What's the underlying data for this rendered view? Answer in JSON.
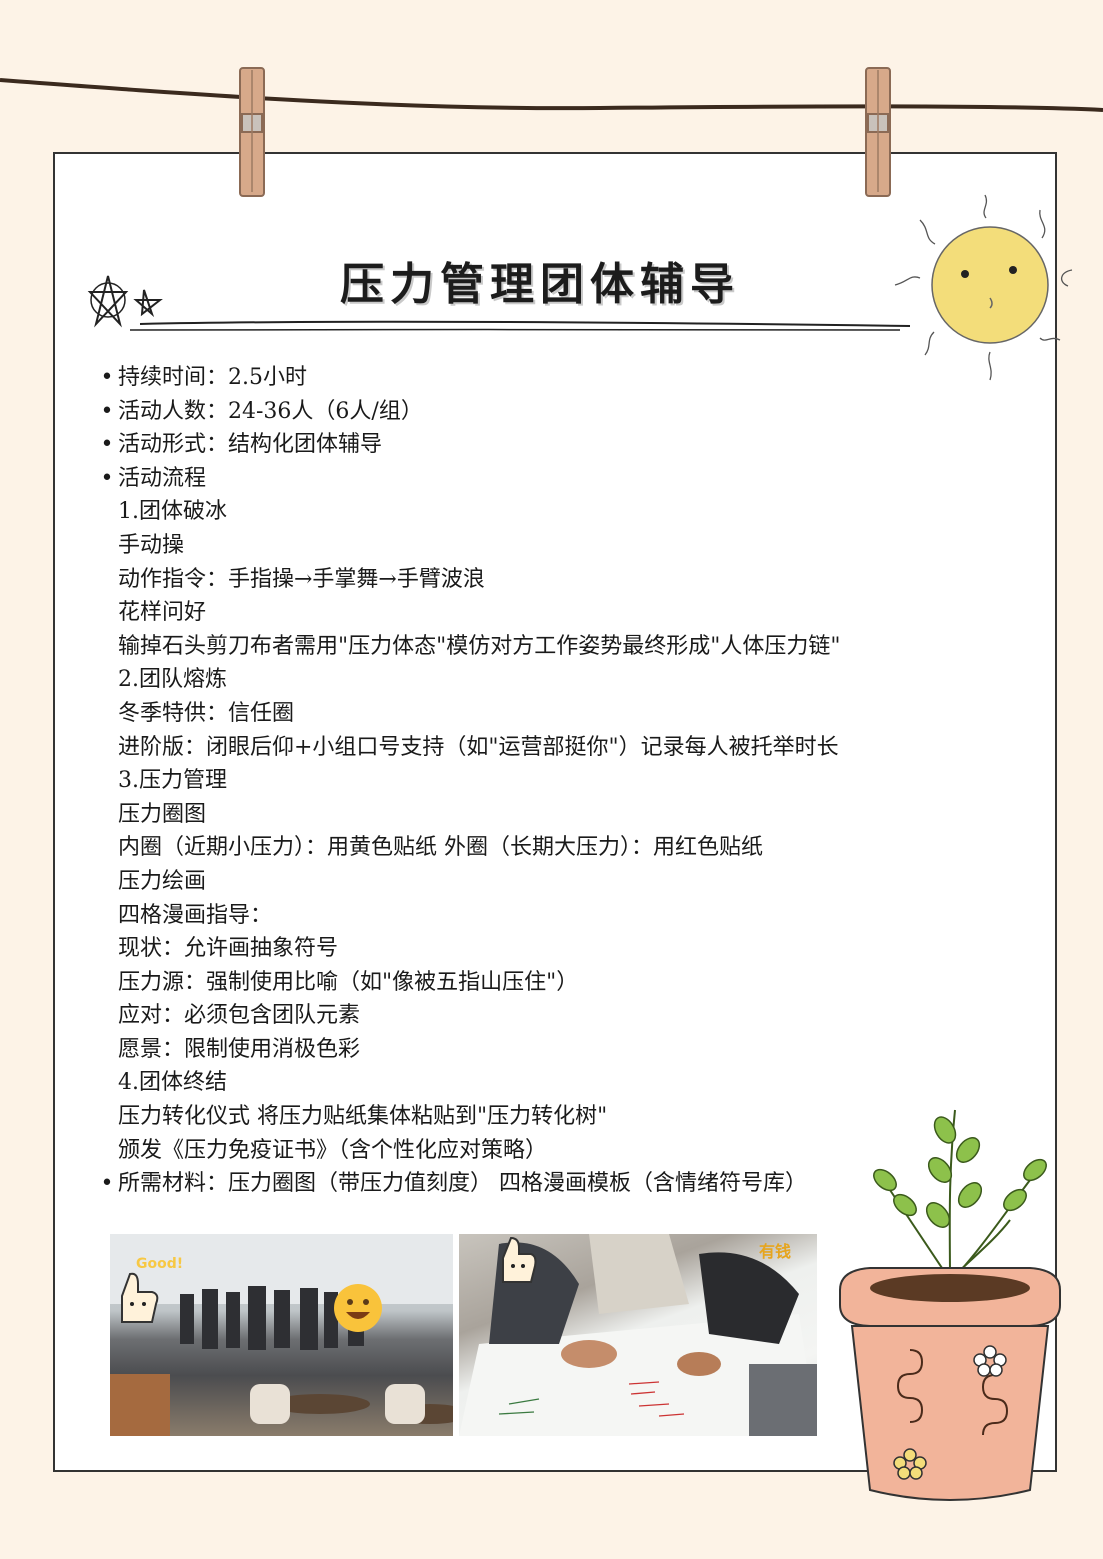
{
  "title": "压力管理团体辅导",
  "lines": [
    {
      "type": "bullet",
      "text": "持续时间：2.5小时"
    },
    {
      "type": "bullet",
      "text": "活动人数：24-36人（6人/组）"
    },
    {
      "type": "bullet",
      "text": "活动形式：结构化团体辅导"
    },
    {
      "type": "bullet",
      "text": "活动流程"
    },
    {
      "type": "sub",
      "text": "1.团体破冰"
    },
    {
      "type": "sub",
      "text": "手动操"
    },
    {
      "type": "sub",
      "text": "动作指令：手指操→手掌舞→手臂波浪"
    },
    {
      "type": "sub",
      "text": "花样问好"
    },
    {
      "type": "sub",
      "text": "输掉石头剪刀布者需用\"压力体态\"模仿对方工作姿势最终形成\"人体压力链\""
    },
    {
      "type": "sub",
      "text": "2.团队熔炼"
    },
    {
      "type": "sub",
      "text": "冬季特供：信任圈"
    },
    {
      "type": "sub",
      "text": "进阶版：闭眼后仰+小组口号支持（如\"运营部挺你\"）记录每人被托举时长"
    },
    {
      "type": "sub",
      "text": "3.压力管理"
    },
    {
      "type": "sub",
      "text": "压力圈图"
    },
    {
      "type": "sub",
      "text": "内圈（近期小压力）：用黄色贴纸 外圈（长期大压力）：用红色贴纸"
    },
    {
      "type": "sub",
      "text": "压力绘画"
    },
    {
      "type": "sub",
      "text": "四格漫画指导："
    },
    {
      "type": "sub",
      "text": "现状：允许画抽象符号"
    },
    {
      "type": "sub",
      "text": "压力源：强制使用比喻（如\"像被五指山压住\"）"
    },
    {
      "type": "sub",
      "text": "应对：必须包含团队元素"
    },
    {
      "type": "sub",
      "text": "愿景：限制使用消极色彩"
    },
    {
      "type": "sub",
      "text": "4.团体终结"
    },
    {
      "type": "sub",
      "text": "压力转化仪式 将压力贴纸集体粘贴到\"压力转化树\""
    },
    {
      "type": "sub",
      "text": "颁发《压力免疫证书》（含个性化应对策略）"
    },
    {
      "type": "bullet",
      "text": "所需材料：压力圈图（带压力值刻度） 四格漫画模板（含情绪符号库）"
    }
  ],
  "photos": [
    {
      "sticker_text": "Good!"
    },
    {
      "sticker_text": "有钱"
    }
  ],
  "colors": {
    "background": "#fdf3e7",
    "sun": "#f3dd7a",
    "pot": "#f2b49a",
    "leaf": "#8dc14b"
  }
}
